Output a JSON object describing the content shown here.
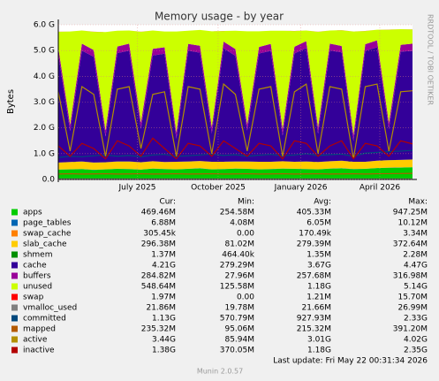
{
  "chart_data": {
    "type": "munin-area",
    "title": "Memory usage - by year",
    "y_label": "Bytes",
    "side_text": "RRDTOOL / TOBI OETIKER",
    "footer": "Last update: Fri May 22 00:31:34 2026",
    "version": "Munin 2.0.57",
    "grid": true,
    "xlim": [
      0,
      390
    ],
    "xticks": [
      {
        "value": 87,
        "label": "July 2025"
      },
      {
        "value": 176,
        "label": "October 2025"
      },
      {
        "value": 267,
        "label": "January 2026"
      },
      {
        "value": 354,
        "label": "April 2026"
      }
    ],
    "ylim": [
      0,
      6000000000
    ],
    "yticks": [
      {
        "value": 0,
        "label": "0.0"
      },
      {
        "value": 1000000000,
        "label": "1.0 G"
      },
      {
        "value": 2000000000,
        "label": "2.0 G"
      },
      {
        "value": 3000000000,
        "label": "3.0 G"
      },
      {
        "value": 4000000000,
        "label": "4.0 G"
      },
      {
        "value": 5000000000,
        "label": "5.0 G"
      },
      {
        "value": 6000000000,
        "label": "6.0 G"
      }
    ],
    "x": [
      0,
      13,
      26,
      39,
      52,
      65,
      78,
      91,
      104,
      117,
      130,
      143,
      156,
      169,
      182,
      195,
      208,
      221,
      234,
      247,
      260,
      273,
      286,
      299,
      312,
      325,
      338,
      351,
      364,
      377,
      390
    ],
    "stats_headers": [
      "Cur:",
      "Min:",
      "Avg:",
      "Max:"
    ],
    "series": [
      {
        "name": "apps",
        "color": "#00cc00",
        "draw": "area",
        "stats": [
          "469.46M",
          "254.58M",
          "405.33M",
          "947.25M"
        ],
        "values": [
          380000000.0,
          390000000.0,
          400000000.0,
          370000000.0,
          390000000.0,
          410000000.0,
          400000000.0,
          380000000.0,
          420000000.0,
          400000000.0,
          390000000.0,
          410000000.0,
          430000000.0,
          390000000.0,
          400000000.0,
          420000000.0,
          410000000.0,
          390000000.0,
          400000000.0,
          420000000.0,
          410000000.0,
          400000000.0,
          390000000.0,
          420000000.0,
          430000000.0,
          400000000.0,
          410000000.0,
          440000000.0,
          450000000.0,
          460000000.0,
          469460000.0
        ]
      },
      {
        "name": "page_tables",
        "color": "#0066b3",
        "draw": "area",
        "stats": [
          "6.88M",
          "4.08M",
          "6.05M",
          "10.12M"
        ],
        "values": [
          5800000.0,
          6000000.0,
          6100000.0,
          5900000.0,
          6000000.0,
          6200000.0,
          6000000.0,
          5900000.0,
          6100000.0,
          6000000.0,
          5800000.0,
          6100000.0,
          6200000.0,
          6000000.0,
          6100000.0,
          6000000.0,
          5900000.0,
          6100000.0,
          6200000.0,
          6000000.0,
          6100000.0,
          6000000.0,
          5900000.0,
          6200000.0,
          6100000.0,
          6000000.0,
          6200000.0,
          6300000.0,
          6500000.0,
          6700000.0,
          6880000.0
        ]
      },
      {
        "name": "swap_cache",
        "color": "#ff8000",
        "draw": "area",
        "stats": [
          "305.45k",
          "0.00",
          "170.49k",
          "3.34M"
        ],
        "values": [
          150000.0,
          170000.0,
          160000.0,
          180000.0,
          150000.0,
          170000.0,
          160000.0,
          180000.0,
          170000.0,
          160000.0,
          150000.0,
          170000.0,
          180000.0,
          160000.0,
          170000.0,
          160000.0,
          150000.0,
          180000.0,
          170000.0,
          160000.0,
          170000.0,
          180000.0,
          160000.0,
          170000.0,
          160000.0,
          150000.0,
          170000.0,
          180000.0,
          200000.0,
          250000.0,
          305450.0
        ]
      },
      {
        "name": "slab_cache",
        "color": "#ffcc00",
        "draw": "area",
        "stats": [
          "296.38M",
          "81.02M",
          "279.39M",
          "372.64M"
        ],
        "values": [
          270000000.0,
          280000000.0,
          290000000.0,
          280000000.0,
          270000000.0,
          280000000.0,
          290000000.0,
          280000000.0,
          280000000.0,
          270000000.0,
          290000000.0,
          280000000.0,
          280000000.0,
          290000000.0,
          280000000.0,
          270000000.0,
          280000000.0,
          290000000.0,
          280000000.0,
          280000000.0,
          270000000.0,
          290000000.0,
          280000000.0,
          280000000.0,
          290000000.0,
          280000000.0,
          270000000.0,
          280000000.0,
          290000000.0,
          290000000.0,
          296380000.0
        ]
      },
      {
        "name": "shmem",
        "color": "#008f00",
        "draw": "area",
        "stats": [
          "1.37M",
          "464.40k",
          "1.35M",
          "2.28M"
        ],
        "values": [
          1300000.0,
          1350000.0,
          1400000.0,
          1300000.0,
          1350000.0,
          1400000.0,
          1300000.0,
          1350000.0,
          1400000.0,
          1300000.0,
          1350000.0,
          1400000.0,
          1300000.0,
          1350000.0,
          1400000.0,
          1300000.0,
          1350000.0,
          1400000.0,
          1300000.0,
          1350000.0,
          1400000.0,
          1300000.0,
          1350000.0,
          1400000.0,
          1300000.0,
          1350000.0,
          1400000.0,
          1300000.0,
          1350000.0,
          1400000.0,
          1370000.0
        ]
      },
      {
        "name": "cache",
        "color": "#330099",
        "draw": "area",
        "stats": [
          "4.21G",
          "279.29M",
          "3.67G",
          "4.47G"
        ],
        "values": [
          4200000000.0,
          1200000000.0,
          4300000000.0,
          4100000000.0,
          1000000000.0,
          4200000000.0,
          4300000000.0,
          1300000000.0,
          4100000000.0,
          4200000000.0,
          900000000.0,
          4300000000.0,
          4200000000.0,
          1100000000.0,
          4400000000.0,
          4100000000.0,
          1200000000.0,
          4200000000.0,
          4300000000.0,
          1000000000.0,
          4200000000.0,
          4400000000.0,
          1100000000.0,
          4300000000.0,
          4200000000.0,
          800000000.0,
          4300000000.0,
          4400000000.0,
          1200000000.0,
          4200000000.0,
          4210000000.0
        ]
      },
      {
        "name": "buffers",
        "color": "#990099",
        "draw": "area",
        "stats": [
          "284.82M",
          "27.96M",
          "257.68M",
          "316.98M"
        ],
        "values": [
          260000000.0,
          250000000.0,
          270000000.0,
          260000000.0,
          240000000.0,
          260000000.0,
          270000000.0,
          250000000.0,
          260000000.0,
          250000000.0,
          240000000.0,
          260000000.0,
          270000000.0,
          250000000.0,
          260000000.0,
          260000000.0,
          240000000.0,
          250000000.0,
          270000000.0,
          250000000.0,
          260000000.0,
          270000000.0,
          240000000.0,
          260000000.0,
          250000000.0,
          240000000.0,
          260000000.0,
          270000000.0,
          250000000.0,
          260000000.0,
          284820000.0
        ]
      },
      {
        "name": "unused",
        "color": "#ccff00",
        "draw": "area",
        "stats": [
          "548.64M",
          "125.58M",
          "1.18G",
          "5.14G"
        ],
        "values": [
          610000000.0,
          3610000000.0,
          510000000.0,
          710000000.0,
          3810000000.0,
          610000000.0,
          510000000.0,
          3510000000.0,
          710000000.0,
          610000000.0,
          3910000000.0,
          510000000.0,
          610000000.0,
          3710000000.0,
          410000000.0,
          710000000.0,
          3610000000.0,
          610000000.0,
          510000000.0,
          3810000000.0,
          610000000.0,
          410000000.0,
          3710000000.0,
          510000000.0,
          610000000.0,
          4010000000.0,
          510000000.0,
          410000000.0,
          3610000000.0,
          610000000.0,
          548640000.0
        ]
      },
      {
        "name": "swap",
        "color": "#ff0000",
        "draw": "area",
        "stats": [
          "1.97M",
          "0.00",
          "1.21M",
          "15.70M"
        ],
        "values": [
          1100000.0,
          1200000.0,
          1200000.0,
          1100000.0,
          1300000.0,
          1200000.0,
          1100000.0,
          1200000.0,
          1300000.0,
          1200000.0,
          1100000.0,
          1200000.0,
          1200000.0,
          1300000.0,
          1100000.0,
          1200000.0,
          1200000.0,
          1100000.0,
          1300000.0,
          1200000.0,
          1200000.0,
          1100000.0,
          1200000.0,
          1300000.0,
          1200000.0,
          1100000.0,
          1200000.0,
          1300000.0,
          1500000.0,
          1800000.0,
          1970000.0
        ]
      },
      {
        "name": "vmalloc_used",
        "color": "#808080",
        "draw": "line",
        "stats": [
          "21.86M",
          "19.78M",
          "21.66M",
          "26.99M"
        ],
        "values": [
          21500000.0,
          21600000.0,
          21700000.0,
          21600000.0,
          21500000.0,
          21700000.0,
          21600000.0,
          21700000.0,
          21600000.0,
          21500000.0,
          21700000.0,
          21600000.0,
          21700000.0,
          21600000.0,
          21500000.0,
          21700000.0,
          21600000.0,
          21700000.0,
          21600000.0,
          21500000.0,
          21700000.0,
          21600000.0,
          21700000.0,
          21600000.0,
          21500000.0,
          21700000.0,
          21600000.0,
          21700000.0,
          21800000.0,
          21800000.0,
          21860000.0
        ]
      },
      {
        "name": "committed",
        "color": "#00487d",
        "draw": "line",
        "stats": [
          "1.13G",
          "570.79M",
          "927.93M",
          "2.33G"
        ],
        "values": [
          850000000.0,
          900000000.0,
          880000000.0,
          920000000.0,
          950000000.0,
          900000000.0,
          930000000.0,
          880000000.0,
          950000000.0,
          970000000.0,
          900000000.0,
          920000000.0,
          950000000.0,
          980000000.0,
          930000000.0,
          960000000.0,
          900000000.0,
          940000000.0,
          970000000.0,
          920000000.0,
          950000000.0,
          1000000000.0,
          930000000.0,
          960000000.0,
          980000000.0,
          900000000.0,
          1020000000.0,
          1050000000.0,
          1080000000.0,
          1100000000.0,
          1130000000.0
        ]
      },
      {
        "name": "mapped",
        "color": "#b35a00",
        "draw": "line",
        "stats": [
          "235.32M",
          "95.06M",
          "215.32M",
          "391.20M"
        ],
        "values": [
          210000000.0,
          220000000.0,
          210000000.0,
          215000000.0,
          220000000.0,
          210000000.0,
          215000000.0,
          220000000.0,
          210000000.0,
          215000000.0,
          220000000.0,
          210000000.0,
          215000000.0,
          220000000.0,
          210000000.0,
          215000000.0,
          220000000.0,
          210000000.0,
          215000000.0,
          220000000.0,
          210000000.0,
          215000000.0,
          220000000.0,
          210000000.0,
          215000000.0,
          220000000.0,
          210000000.0,
          220000000.0,
          225000000.0,
          230000000.0,
          235320000.0
        ]
      },
      {
        "name": "active",
        "color": "#b38f00",
        "draw": "line",
        "stats": [
          "3.44G",
          "85.94M",
          "3.01G",
          "4.02G"
        ],
        "values": [
          3400000000.0,
          1100000000.0,
          3600000000.0,
          3300000000.0,
          900000000.0,
          3500000000.0,
          3600000000.0,
          1200000000.0,
          3300000000.0,
          3400000000.0,
          900000000.0,
          3600000000.0,
          3500000000.0,
          1000000000.0,
          3700000000.0,
          3300000000.0,
          1100000000.0,
          3500000000.0,
          3600000000.0,
          900000000.0,
          3400000000.0,
          3700000000.0,
          1000000000.0,
          3600000000.0,
          3500000000.0,
          800000000.0,
          3600000000.0,
          3700000000.0,
          1100000000.0,
          3400000000.0,
          3440000000.0
        ]
      },
      {
        "name": "inactive",
        "color": "#b30000",
        "draw": "line",
        "stats": [
          "1.38G",
          "370.05M",
          "1.18G",
          "2.35G"
        ],
        "values": [
          1300000000.0,
          900000000.0,
          1400000000.0,
          1200000000.0,
          800000000.0,
          1500000000.0,
          1300000000.0,
          900000000.0,
          1600000000.0,
          1200000000.0,
          800000000.0,
          1400000000.0,
          1300000000.0,
          900000000.0,
          1500000000.0,
          1200000000.0,
          900000000.0,
          1400000000.0,
          1300000000.0,
          800000000.0,
          1500000000.0,
          1400000000.0,
          900000000.0,
          1300000000.0,
          1500000000.0,
          800000000.0,
          1400000000.0,
          1300000000.0,
          900000000.0,
          1500000000.0,
          1380000000.0
        ]
      }
    ]
  }
}
